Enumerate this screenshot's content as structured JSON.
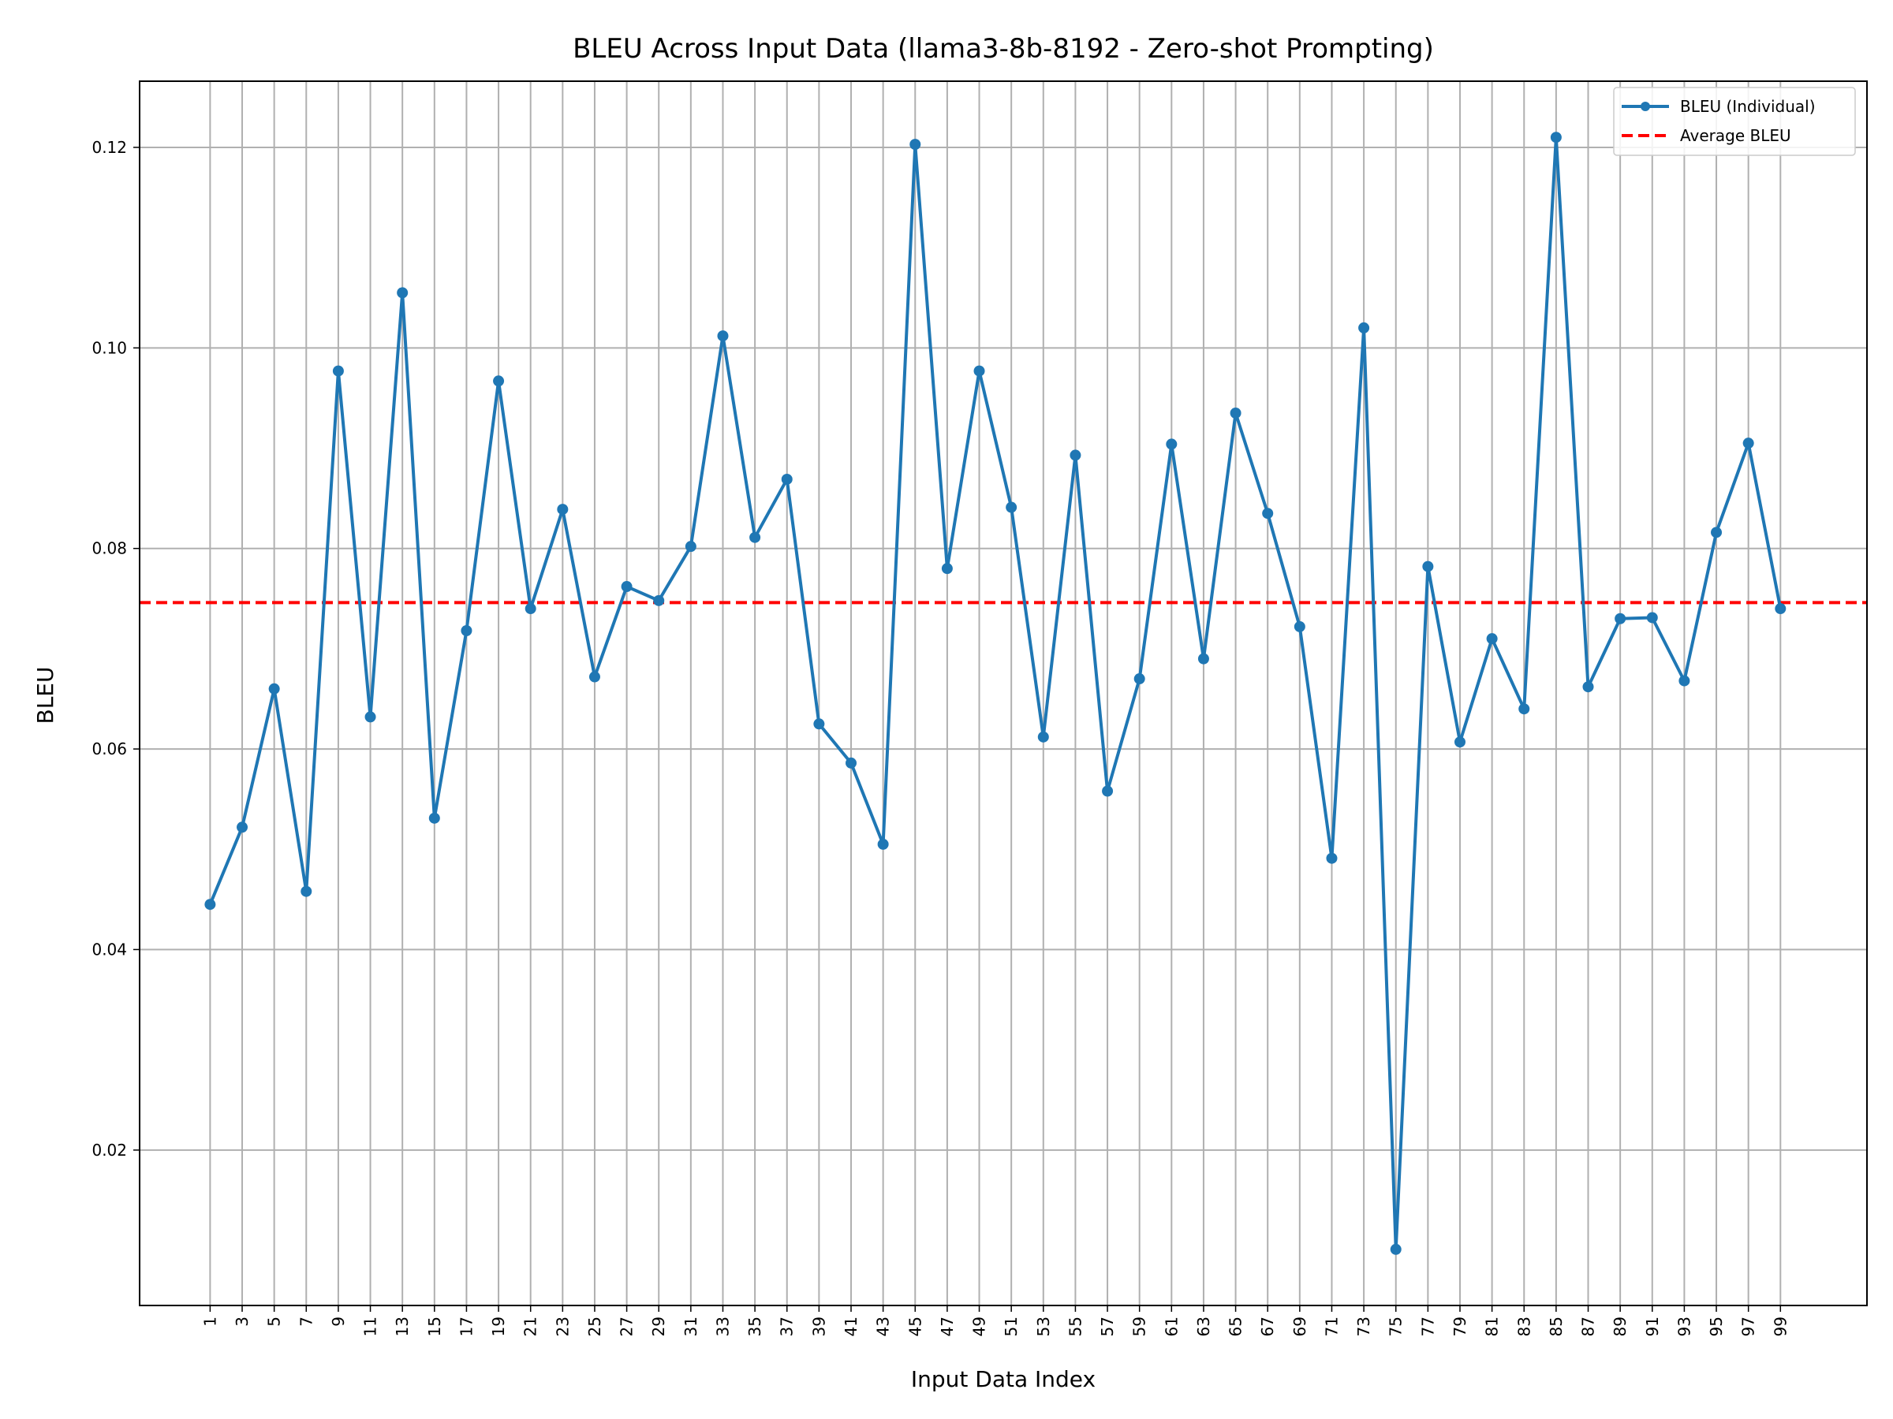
{
  "chart_data": {
    "type": "line",
    "title": "BLEU Across Input Data (llama3-8b-8192 - Zero-shot Prompting)",
    "xlabel": "Input Data Index",
    "ylabel": "BLEU",
    "x_ticks": [
      1,
      3,
      5,
      7,
      9,
      11,
      13,
      15,
      17,
      19,
      21,
      23,
      25,
      27,
      29,
      31,
      33,
      35,
      37,
      39,
      41,
      43,
      45,
      47,
      49,
      51,
      53,
      55,
      57,
      59,
      61,
      63,
      65,
      67,
      69,
      71,
      73,
      75,
      77,
      79,
      81,
      83,
      85,
      87,
      89,
      91,
      93,
      95,
      97,
      99
    ],
    "y_ticks": [
      "0.02",
      "0.04",
      "0.06",
      "0.08",
      "0.10",
      "0.12"
    ],
    "xlim": [
      -3.4,
      104.4
    ],
    "ylim": [
      0.0045,
      0.1266
    ],
    "grid": true,
    "legend_position": "top-right",
    "series": [
      {
        "name": "BLEU (Individual)",
        "style": "line-with-markers",
        "color": "#1f77b4",
        "x": [
          1,
          3,
          5,
          7,
          9,
          11,
          13,
          15,
          17,
          19,
          21,
          23,
          25,
          27,
          29,
          31,
          33,
          35,
          37,
          39,
          41,
          43,
          45,
          47,
          49,
          51,
          53,
          55,
          57,
          59,
          61,
          63,
          65,
          67,
          69,
          71,
          73,
          75,
          77,
          79,
          81,
          83,
          85,
          87,
          89,
          91,
          93,
          95,
          97,
          99
        ],
        "values": [
          0.0445,
          0.0522,
          0.066,
          0.0458,
          0.0977,
          0.0632,
          0.1055,
          0.0531,
          0.0718,
          0.0967,
          0.074,
          0.0839,
          0.0672,
          0.0762,
          0.0748,
          0.0802,
          0.1012,
          0.0811,
          0.0869,
          0.0625,
          0.0586,
          0.0505,
          0.1203,
          0.078,
          0.0977,
          0.0841,
          0.0612,
          0.0893,
          0.0558,
          0.067,
          0.0904,
          0.069,
          0.0935,
          0.0835,
          0.0722,
          0.0491,
          0.102,
          0.0101,
          0.0782,
          0.0607,
          0.071,
          0.064,
          0.121,
          0.0662,
          0.073,
          0.0731,
          0.0668,
          0.0816,
          0.0905,
          0.074
        ]
      },
      {
        "name": "Average BLEU",
        "style": "dashed-horizontal",
        "color": "#ff0000",
        "value": 0.0746
      }
    ]
  }
}
